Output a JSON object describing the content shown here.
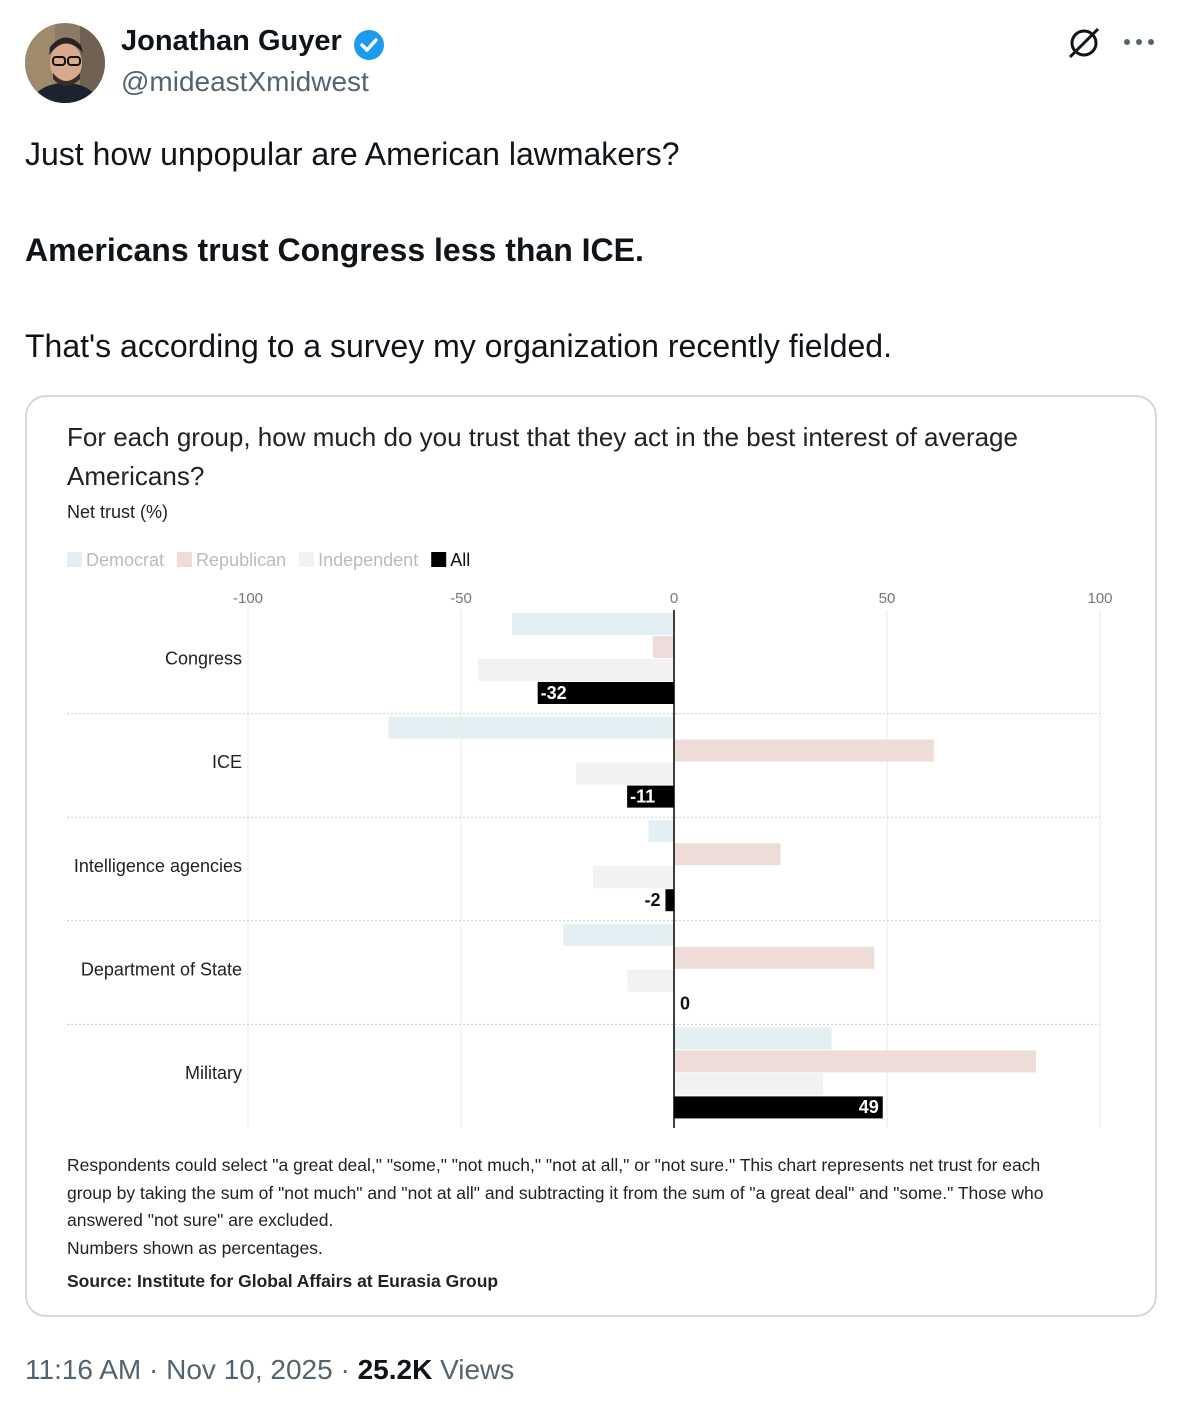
{
  "author": {
    "name": "Jonathan Guyer",
    "handle": "@mideastXmidwest"
  },
  "tweet": {
    "lines": [
      "Just how unpopular are American lawmakers?",
      "Americans trust Congress less than ICE.",
      "That's according to a survey my organization recently fielded."
    ]
  },
  "chart_data": {
    "type": "hbar",
    "title": "For each group, how much do you trust that they act in the best interest of average Americans?",
    "subtitle": "Net trust (%)",
    "categories": [
      "Congress",
      "ICE",
      "Intelligence agencies",
      "Department of State",
      "Military"
    ],
    "series": [
      {
        "name": "Democrat",
        "color": "#e3eff2",
        "values": [
          -38,
          -67,
          -6,
          -26,
          37
        ]
      },
      {
        "name": "Republican",
        "color": "#eedcd9",
        "values": [
          -5,
          61,
          25,
          47,
          85
        ]
      },
      {
        "name": "Independent",
        "color": "#f2f2f2",
        "values": [
          -46,
          -23,
          -19,
          -11,
          35
        ]
      },
      {
        "name": "All",
        "color": "#000000",
        "values": [
          -32,
          -11,
          -2,
          0,
          49
        ],
        "labeled": true
      }
    ],
    "xlim": [
      -100,
      100
    ],
    "xticks": [
      -100,
      -50,
      0,
      50,
      100
    ],
    "grid": true,
    "footnote": [
      "Respondents could select \"a great deal,\" \"some,\" \"not much,\" \"not at all,\" or \"not sure.\" This chart represents net trust for each group by taking the sum of \"not much\" and \"not at all\" and subtracting it from the sum of \"a great deal\" and \"some.\" Those who answered \"not sure\" are excluded.",
      "Numbers shown as percentages."
    ],
    "source": "Source: Institute for Global Affairs at Eurasia Group"
  },
  "footer": {
    "time": "11:16 AM",
    "date": "Nov 10, 2025",
    "views": "25.2K",
    "views_label": "Views"
  }
}
